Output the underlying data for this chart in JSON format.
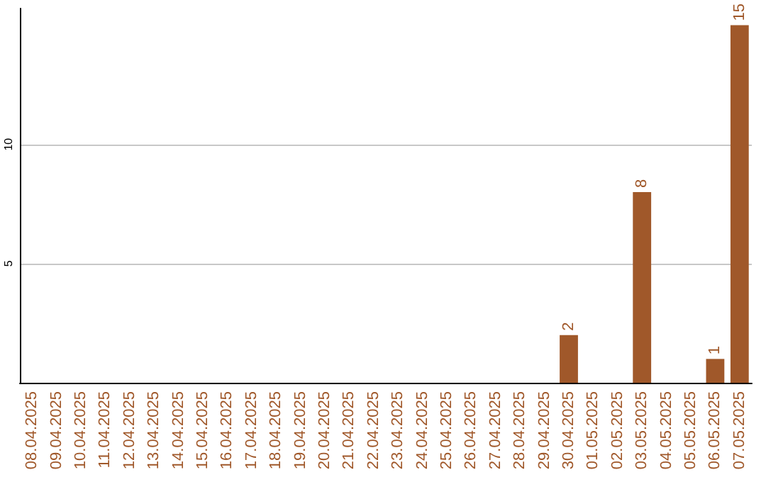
{
  "chart_data": {
    "type": "bar",
    "categories": [
      "08.04.2025",
      "09.04.2025",
      "10.04.2025",
      "11.04.2025",
      "12.04.2025",
      "13.04.2025",
      "14.04.2025",
      "15.04.2025",
      "16.04.2025",
      "17.04.2025",
      "18.04.2025",
      "19.04.2025",
      "20.04.2025",
      "21.04.2025",
      "22.04.2025",
      "23.04.2025",
      "24.04.2025",
      "25.04.2025",
      "26.04.2025",
      "27.04.2025",
      "28.04.2025",
      "29.04.2025",
      "30.04.2025",
      "01.05.2025",
      "02.05.2025",
      "03.05.2025",
      "04.05.2025",
      "05.05.2025",
      "06.05.2025",
      "07.05.2025"
    ],
    "values": [
      0,
      0,
      0,
      0,
      0,
      0,
      0,
      0,
      0,
      0,
      0,
      0,
      0,
      0,
      0,
      0,
      0,
      0,
      0,
      0,
      0,
      0,
      2,
      0,
      0,
      8,
      0,
      0,
      1,
      15
    ],
    "value_labels": [
      null,
      null,
      null,
      null,
      null,
      null,
      null,
      null,
      null,
      null,
      null,
      null,
      null,
      null,
      null,
      null,
      null,
      null,
      null,
      null,
      null,
      null,
      "2",
      null,
      null,
      "8",
      null,
      null,
      "1",
      "15"
    ],
    "color": "#a0582a",
    "ylim": [
      0,
      15.7
    ],
    "yticks": [
      5,
      10
    ],
    "grid": "y"
  }
}
